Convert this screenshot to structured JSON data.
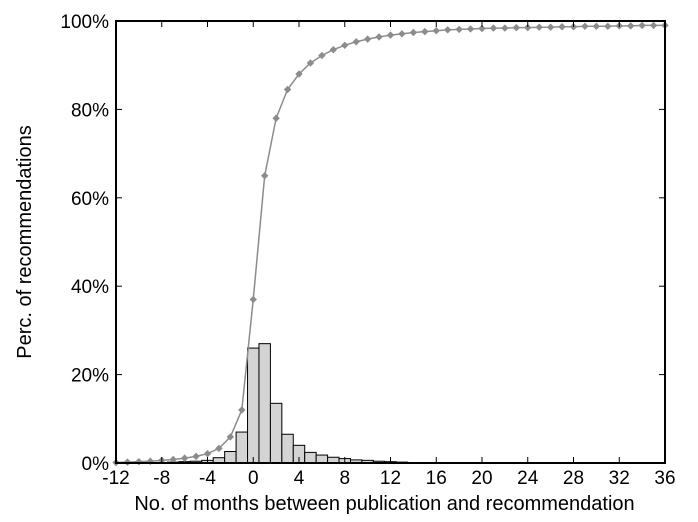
{
  "chart_data": {
    "type": "bar",
    "title": "",
    "xlabel": "No. of months between publication and recommendation",
    "ylabel": "Perc. of recommendations",
    "xlim": [
      -12,
      36
    ],
    "ylim": [
      0,
      100
    ],
    "xticks": [
      "-12",
      "-8",
      "-4",
      "0",
      "4",
      "8",
      "12",
      "16",
      "20",
      "24",
      "28",
      "32",
      "36"
    ],
    "yticks": [
      "0%",
      "20%",
      "40%",
      "60%",
      "80%",
      "100%"
    ],
    "grid": false,
    "legend": "none",
    "histogram": {
      "bin_width": 1,
      "x": [
        -11,
        -10,
        -9,
        -8,
        -7,
        -6,
        -5,
        -4,
        -3,
        -2,
        -1,
        0,
        1,
        2,
        3,
        4,
        5,
        6,
        7,
        8,
        9,
        10,
        11,
        12,
        13,
        14
      ],
      "values": [
        0.1,
        0.1,
        0.1,
        0.1,
        0.2,
        0.3,
        0.4,
        0.6,
        1.2,
        2.6,
        7.0,
        26.0,
        27.0,
        13.5,
        6.5,
        4.0,
        2.4,
        1.8,
        1.3,
        1.0,
        0.7,
        0.6,
        0.4,
        0.3,
        0.2,
        0.1
      ],
      "fill_color": "#d4d4d4",
      "edge_color": "#000000"
    },
    "cumulative": {
      "x": [
        -12,
        -11,
        -10,
        -9,
        -8,
        -7,
        -6,
        -5,
        -4,
        -3,
        -2,
        -1,
        0,
        1,
        2,
        3,
        4,
        5,
        6,
        7,
        8,
        9,
        10,
        11,
        12,
        13,
        14,
        15,
        16,
        17,
        18,
        19,
        20,
        21,
        22,
        23,
        24,
        25,
        26,
        27,
        28,
        29,
        30,
        31,
        32,
        33,
        34,
        35,
        36
      ],
      "values": [
        0.1,
        0.2,
        0.3,
        0.4,
        0.6,
        0.8,
        1.1,
        1.5,
        2.1,
        3.3,
        5.9,
        12.0,
        37.0,
        65.0,
        78.0,
        84.5,
        88.0,
        90.5,
        92.2,
        93.5,
        94.5,
        95.3,
        95.9,
        96.4,
        96.8,
        97.1,
        97.4,
        97.6,
        97.8,
        98.0,
        98.1,
        98.2,
        98.3,
        98.4,
        98.4,
        98.5,
        98.5,
        98.6,
        98.6,
        98.7,
        98.7,
        98.8,
        98.8,
        98.8,
        98.9,
        98.9,
        99.0,
        99.0,
        99.0
      ],
      "line_color": "#8c8c8c",
      "marker": "diamond"
    }
  }
}
